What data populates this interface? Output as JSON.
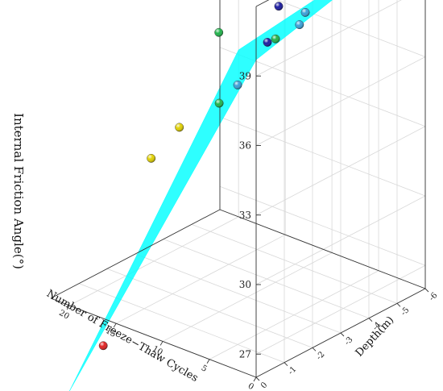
{
  "chart_data": {
    "type": "scatter3d",
    "title": "",
    "x_label": "Number of Freeze−Thaw Cycles",
    "y_label": "Depth(m)",
    "z_label": "Internal Friction Angle(°)",
    "x_range": [
      0,
      22
    ],
    "y_range": [
      0,
      6
    ],
    "z_range": [
      26,
      42
    ],
    "x_ticks": [
      "0",
      "5",
      "10",
      "15",
      "20"
    ],
    "y_ticks": [
      "0",
      "-1",
      "-2",
      "-3",
      "-4",
      "-5",
      "-6"
    ],
    "z_ticks": [
      "27",
      "30",
      "33",
      "36",
      "39"
    ],
    "grid": true,
    "surface": {
      "type": "fitted plane",
      "color": "#00ffff",
      "corner_values": [
        {
          "cycles": 0,
          "depth": 0,
          "angle": 39.7
        },
        {
          "cycles": 0,
          "depth": 6,
          "angle": 41.6
        },
        {
          "cycles": 20,
          "depth": 6,
          "angle": 33.2
        },
        {
          "cycles": 20,
          "depth": 0,
          "angle": 22.3
        }
      ]
    },
    "points": [
      {
        "cycles": 0,
        "depth": 0.8,
        "angle": 41.5,
        "color": "#1a1aa0"
      },
      {
        "cycles": 0,
        "depth": 2.0,
        "angle": 41.4,
        "color": "#1a1aa0"
      },
      {
        "cycles": 0,
        "depth": 3.0,
        "angle": 41.6,
        "color": "#1a1aa0"
      },
      {
        "cycles": 0,
        "depth": 5.4,
        "angle": 41.8,
        "color": "#1a1aa0"
      },
      {
        "cycles": 0,
        "depth": 6.0,
        "angle": 41.7,
        "color": "#1a1aa0"
      },
      {
        "cycles": 0,
        "depth": 0.4,
        "angle": 40.2,
        "color": "#1a1aa0"
      },
      {
        "cycles": 3,
        "depth": 3.8,
        "angle": 40.0,
        "color": "#3aa0d8"
      },
      {
        "cycles": 2,
        "depth": 2.2,
        "angle": 39.5,
        "color": "#3aa0d8"
      },
      {
        "cycles": 5,
        "depth": 3.4,
        "angle": 38.8,
        "color": "#3aa0d8"
      },
      {
        "cycles": 4,
        "depth": 4.6,
        "angle": 39.8,
        "color": "#3aa0d8"
      },
      {
        "cycles": 6,
        "depth": 5.0,
        "angle": 39.0,
        "color": "#1a1aa0"
      },
      {
        "cycles": 8,
        "depth": 5.5,
        "angle": 40.5,
        "color": "#3aa0d8"
      },
      {
        "cycles": 5,
        "depth": 1.0,
        "angle": 37.2,
        "color": "#3aa0d8"
      },
      {
        "cycles": 10,
        "depth": 4.0,
        "angle": 36.5,
        "color": "#1fb34a"
      },
      {
        "cycles": 10,
        "depth": 2.0,
        "angle": 35.0,
        "color": "#1fb34a"
      },
      {
        "cycles": 20,
        "depth": 5.3,
        "angle": 34.4,
        "color": "#1fb34a"
      },
      {
        "cycles": 20,
        "depth": 2.9,
        "angle": 30.5,
        "color": "#e0d000"
      },
      {
        "cycles": 20,
        "depth": 3.9,
        "angle": 31.2,
        "color": "#e0d000"
      },
      {
        "cycles": 20,
        "depth": 1.2,
        "angle": 23.5,
        "color": "#e02020"
      }
    ]
  }
}
